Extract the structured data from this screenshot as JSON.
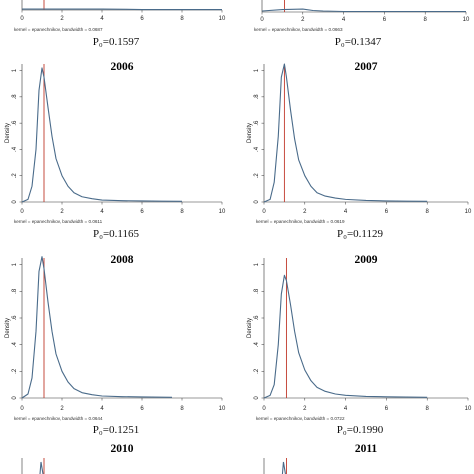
{
  "chart_data": [
    {
      "type": "line",
      "title": "",
      "ylabel": "",
      "xlabel": "",
      "note": "kernel = epanechnikov, bandwidth = 0.0687",
      "p_value": "P₀=0.1597",
      "xlim": [
        0,
        10
      ],
      "x_ticks": [
        "0",
        "2",
        "4",
        "6",
        "8",
        "10"
      ],
      "ref_line_x": 1.1,
      "line_color": "#4a6b8a",
      "ref_color": "#c0392b",
      "x": [
        0.0,
        0.5,
        1.0,
        1.5,
        2.0,
        2.5,
        3.0,
        4.0,
        6.0,
        8.0,
        10.0
      ],
      "y": [
        0.02,
        0.02,
        0.02,
        0.02,
        0.02,
        0.02,
        0.02,
        0.02,
        0.01,
        0.01,
        0.01
      ]
    },
    {
      "type": "line",
      "title": "",
      "ylabel": "",
      "xlabel": "",
      "note": "kernel = epanechnikov, bandwidth = 0.0663",
      "p_value": "P₀=0.1347",
      "xlim": [
        0,
        10
      ],
      "x_ticks": [
        "0",
        "2",
        "4",
        "6",
        "8",
        "10"
      ],
      "ref_line_x": 1.1,
      "line_color": "#4a6b8a",
      "ref_color": "#c0392b",
      "x": [
        0.0,
        1.0,
        2.0,
        2.5,
        3.0,
        4.0,
        6.0,
        8.0,
        10.0
      ],
      "y": [
        0.02,
        0.05,
        0.06,
        0.03,
        0.02,
        0.01,
        0.01,
        0.01,
        0.01
      ]
    },
    {
      "type": "line",
      "title": "2006",
      "ylabel": "Density",
      "xlabel": "",
      "note": "kernel = epanechnikov, bandwidth = 0.0611",
      "p_value": "P₀=0.1165",
      "xlim": [
        0,
        10
      ],
      "ylim": [
        0,
        1.05
      ],
      "x_ticks": [
        "0",
        "2",
        "4",
        "6",
        "8",
        "10"
      ],
      "y_ticks": [
        "0",
        ".2",
        ".4",
        ".6",
        ".8",
        "1"
      ],
      "ref_line_x": 1.1,
      "line_color": "#4a6b8a",
      "ref_color": "#c0392b",
      "x": [
        0.0,
        0.3,
        0.5,
        0.7,
        0.85,
        1.0,
        1.1,
        1.3,
        1.5,
        1.7,
        2.0,
        2.3,
        2.6,
        3.0,
        3.5,
        4.0,
        5.0,
        6.0,
        7.0,
        8.0
      ],
      "y": [
        0.0,
        0.02,
        0.12,
        0.4,
        0.85,
        1.02,
        0.95,
        0.72,
        0.5,
        0.33,
        0.2,
        0.12,
        0.07,
        0.04,
        0.025,
        0.015,
        0.01,
        0.008,
        0.006,
        0.005
      ]
    },
    {
      "type": "line",
      "title": "2007",
      "ylabel": "Density",
      "xlabel": "",
      "note": "kernel = epanechnikov, bandwidth = 0.0619",
      "p_value": "P₀=0.1129",
      "xlim": [
        0,
        10
      ],
      "ylim": [
        0,
        1.05
      ],
      "x_ticks": [
        "0",
        "2",
        "4",
        "6",
        "8",
        "10"
      ],
      "y_ticks": [
        "0",
        ".2",
        ".4",
        ".6",
        ".8",
        "1"
      ],
      "ref_line_x": 1.0,
      "line_color": "#4a6b8a",
      "ref_color": "#c0392b",
      "x": [
        0.0,
        0.3,
        0.5,
        0.7,
        0.85,
        1.0,
        1.1,
        1.3,
        1.5,
        1.7,
        2.0,
        2.3,
        2.6,
        3.0,
        3.5,
        4.0,
        5.0,
        6.0,
        7.0,
        8.0
      ],
      "y": [
        0.0,
        0.02,
        0.15,
        0.5,
        0.95,
        1.05,
        0.95,
        0.7,
        0.48,
        0.32,
        0.2,
        0.12,
        0.07,
        0.045,
        0.03,
        0.02,
        0.012,
        0.008,
        0.006,
        0.005
      ]
    },
    {
      "type": "line",
      "title": "2008",
      "ylabel": "Density",
      "xlabel": "",
      "note": "kernel = epanechnikov, bandwidth = 0.0644",
      "p_value": "P₀=0.1251",
      "xlim": [
        0,
        10
      ],
      "ylim": [
        0,
        1.05
      ],
      "x_ticks": [
        "0",
        "2",
        "4",
        "6",
        "8",
        "10"
      ],
      "y_ticks": [
        "0",
        ".2",
        ".4",
        ".6",
        ".8",
        "1"
      ],
      "ref_line_x": 1.1,
      "line_color": "#4a6b8a",
      "ref_color": "#c0392b",
      "x": [
        0.0,
        0.3,
        0.5,
        0.7,
        0.85,
        1.0,
        1.1,
        1.3,
        1.5,
        1.7,
        2.0,
        2.3,
        2.6,
        3.0,
        3.5,
        4.0,
        5.0,
        6.0,
        7.0,
        7.5
      ],
      "y": [
        0.0,
        0.03,
        0.15,
        0.5,
        0.95,
        1.06,
        0.97,
        0.72,
        0.5,
        0.33,
        0.2,
        0.12,
        0.07,
        0.04,
        0.025,
        0.015,
        0.01,
        0.008,
        0.006,
        0.005
      ]
    },
    {
      "type": "line",
      "title": "2009",
      "ylabel": "Density",
      "xlabel": "",
      "note": "kernel = epanechnikov, bandwidth = 0.0722",
      "p_value": "P₀=0.1990",
      "xlim": [
        0,
        10
      ],
      "ylim": [
        0,
        1.05
      ],
      "x_ticks": [
        "0",
        "2",
        "4",
        "6",
        "8",
        "10"
      ],
      "y_ticks": [
        "0",
        ".2",
        ".4",
        ".6",
        ".8",
        "1"
      ],
      "ref_line_x": 1.1,
      "line_color": "#4a6b8a",
      "ref_color": "#c0392b",
      "x": [
        0.0,
        0.3,
        0.5,
        0.7,
        0.85,
        1.0,
        1.1,
        1.3,
        1.5,
        1.7,
        2.0,
        2.3,
        2.6,
        3.0,
        3.5,
        4.0,
        5.0,
        6.0,
        7.0,
        8.0
      ],
      "y": [
        0.0,
        0.02,
        0.1,
        0.4,
        0.78,
        0.92,
        0.88,
        0.7,
        0.5,
        0.34,
        0.21,
        0.13,
        0.08,
        0.05,
        0.03,
        0.02,
        0.012,
        0.009,
        0.007,
        0.005
      ]
    },
    {
      "type": "line",
      "title": "2010",
      "ylabel": "",
      "xlabel": "",
      "note": "",
      "p_value": "",
      "xlim": [
        0,
        10
      ],
      "ylim": [
        0,
        1.05
      ],
      "x_ticks": [],
      "y_ticks": [],
      "ref_line_x": 1.1,
      "line_color": "#4a6b8a",
      "ref_color": "#c0392b",
      "x": [],
      "y": []
    },
    {
      "type": "line",
      "title": "2011",
      "ylabel": "",
      "xlabel": "",
      "note": "",
      "p_value": "",
      "xlim": [
        0,
        10
      ],
      "ylim": [
        0,
        1.05
      ],
      "x_ticks": [],
      "y_ticks": [],
      "ref_line_x": 1.1,
      "line_color": "#4a6b8a",
      "ref_color": "#c0392b",
      "x": [],
      "y": []
    }
  ]
}
